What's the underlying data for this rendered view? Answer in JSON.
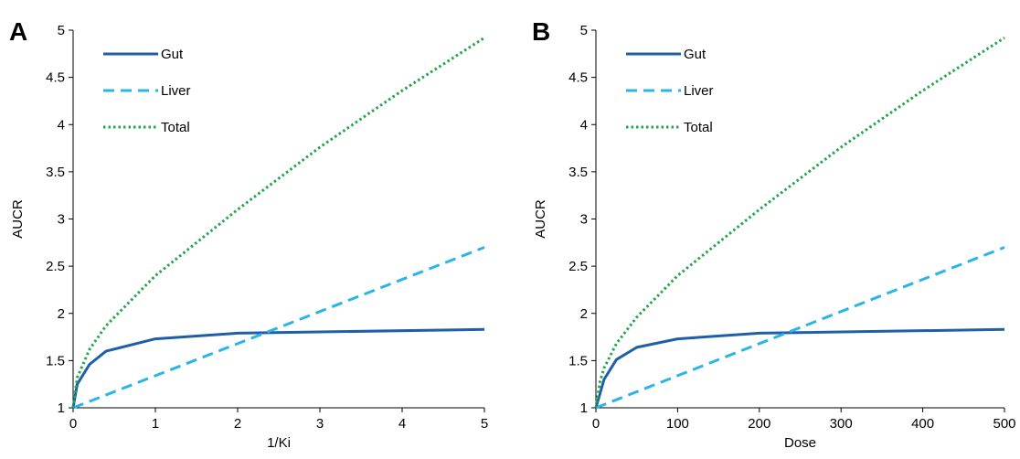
{
  "chart_data": [
    {
      "type": "line",
      "panel_label": "A",
      "xlabel": "1/Ki",
      "ylabel": "AUCR",
      "xlim": [
        0,
        5
      ],
      "ylim": [
        1,
        5
      ],
      "x_ticks": [
        "0",
        "1",
        "2",
        "3",
        "4",
        "5"
      ],
      "y_ticks": [
        "1",
        "1.5",
        "2",
        "2.5",
        "3",
        "3.5",
        "4",
        "4.5",
        "5"
      ],
      "grid": false,
      "legend_position": "top-left",
      "series": [
        {
          "name": "Gut",
          "style": "solid",
          "color": "#1f5fa8",
          "x": [
            0,
            0.05,
            0.2,
            0.4,
            1,
            2,
            5
          ],
          "y": [
            1,
            1.25,
            1.46,
            1.6,
            1.73,
            1.79,
            1.83
          ]
        },
        {
          "name": "Liver",
          "style": "dashed",
          "color": "#29b6e6",
          "x": [
            0,
            5
          ],
          "y": [
            1,
            2.7
          ]
        },
        {
          "name": "Total",
          "style": "dotted",
          "color": "#22a64a",
          "x": [
            0,
            0.05,
            0.2,
            0.4,
            1,
            2,
            3,
            4,
            5
          ],
          "y": [
            1,
            1.32,
            1.62,
            1.87,
            2.4,
            3.1,
            3.76,
            4.36,
            4.92
          ]
        }
      ]
    },
    {
      "type": "line",
      "panel_label": "B",
      "xlabel": "Dose",
      "ylabel": "AUCR",
      "xlim": [
        0,
        500
      ],
      "ylim": [
        1,
        5
      ],
      "x_ticks": [
        "0",
        "100",
        "200",
        "300",
        "400",
        "500"
      ],
      "y_ticks": [
        "1",
        "1.5",
        "2",
        "2.5",
        "3",
        "3.5",
        "4",
        "4.5",
        "5"
      ],
      "grid": false,
      "legend_position": "top-left",
      "series": [
        {
          "name": "Gut",
          "style": "solid",
          "color": "#1f5fa8",
          "x": [
            0,
            5,
            10,
            25,
            50,
            100,
            200,
            500
          ],
          "y": [
            1,
            1.15,
            1.3,
            1.51,
            1.64,
            1.73,
            1.79,
            1.83
          ]
        },
        {
          "name": "Liver",
          "style": "dashed",
          "color": "#29b6e6",
          "x": [
            0,
            500
          ],
          "y": [
            1,
            2.7
          ]
        },
        {
          "name": "Total",
          "style": "dotted",
          "color": "#22a64a",
          "x": [
            0,
            5,
            10,
            25,
            50,
            100,
            200,
            300,
            400,
            500
          ],
          "y": [
            1,
            1.28,
            1.42,
            1.68,
            1.96,
            2.4,
            3.1,
            3.76,
            4.36,
            4.92
          ]
        }
      ]
    }
  ]
}
